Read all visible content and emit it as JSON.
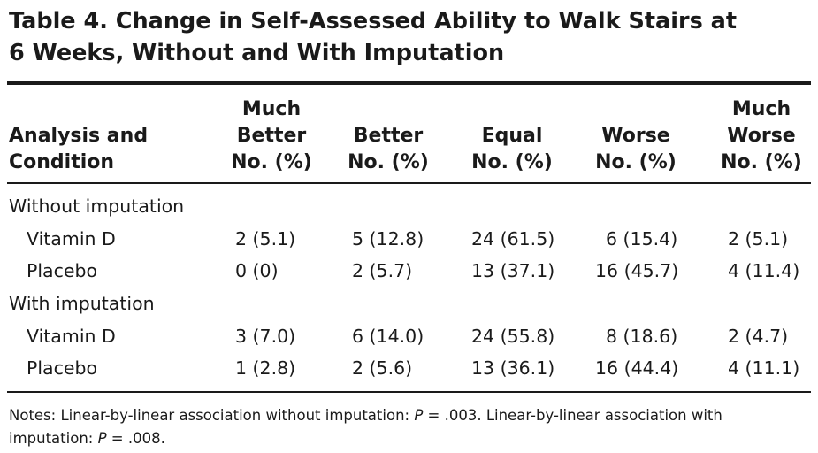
{
  "title": {
    "line1": "Table 4. Change in Self-Assessed Ability to Walk Stairs at",
    "line2": "6 Weeks, Without and With Imputation"
  },
  "header": {
    "analysis": [
      "Analysis and",
      "Condition"
    ],
    "columns": [
      [
        "Much",
        "Better",
        "No. (%)"
      ],
      [
        "Better",
        "No. (%)"
      ],
      [
        "Equal",
        "No. (%)"
      ],
      [
        "Worse",
        "No. (%)"
      ],
      [
        "Much",
        "Worse",
        "No. (%)"
      ]
    ]
  },
  "groups": [
    {
      "label": "Without imputation",
      "rows": [
        {
          "condition": "Vitamin D",
          "values": [
            "2 (5.1)",
            "5 (12.8)",
            "24 (61.5)",
            "6 (15.4)",
            "2 (5.1)"
          ]
        },
        {
          "condition": "Placebo",
          "values": [
            "0 (0)",
            "2 (5.7)",
            "13 (37.1)",
            "16 (45.7)",
            "4 (11.4)"
          ]
        }
      ]
    },
    {
      "label": "With imputation",
      "rows": [
        {
          "condition": "Vitamin D",
          "values": [
            "3 (7.0)",
            "6 (14.0)",
            "24 (55.8)",
            "8 (18.6)",
            "2 (4.7)"
          ]
        },
        {
          "condition": "Placebo",
          "values": [
            "1 (2.8)",
            "2 (5.6)",
            "13 (36.1)",
            "16 (44.4)",
            "4 (11.1)"
          ]
        }
      ]
    }
  ],
  "notes": {
    "lead": "Notes: Linear-by-linear association without imputation: ",
    "p_symbol_1": "P",
    "p_value_1": " = .003. Linear-by-linear association with",
    "line2_start": "imputation: ",
    "p_symbol_2": "P",
    "p_value_2": " = .008."
  }
}
